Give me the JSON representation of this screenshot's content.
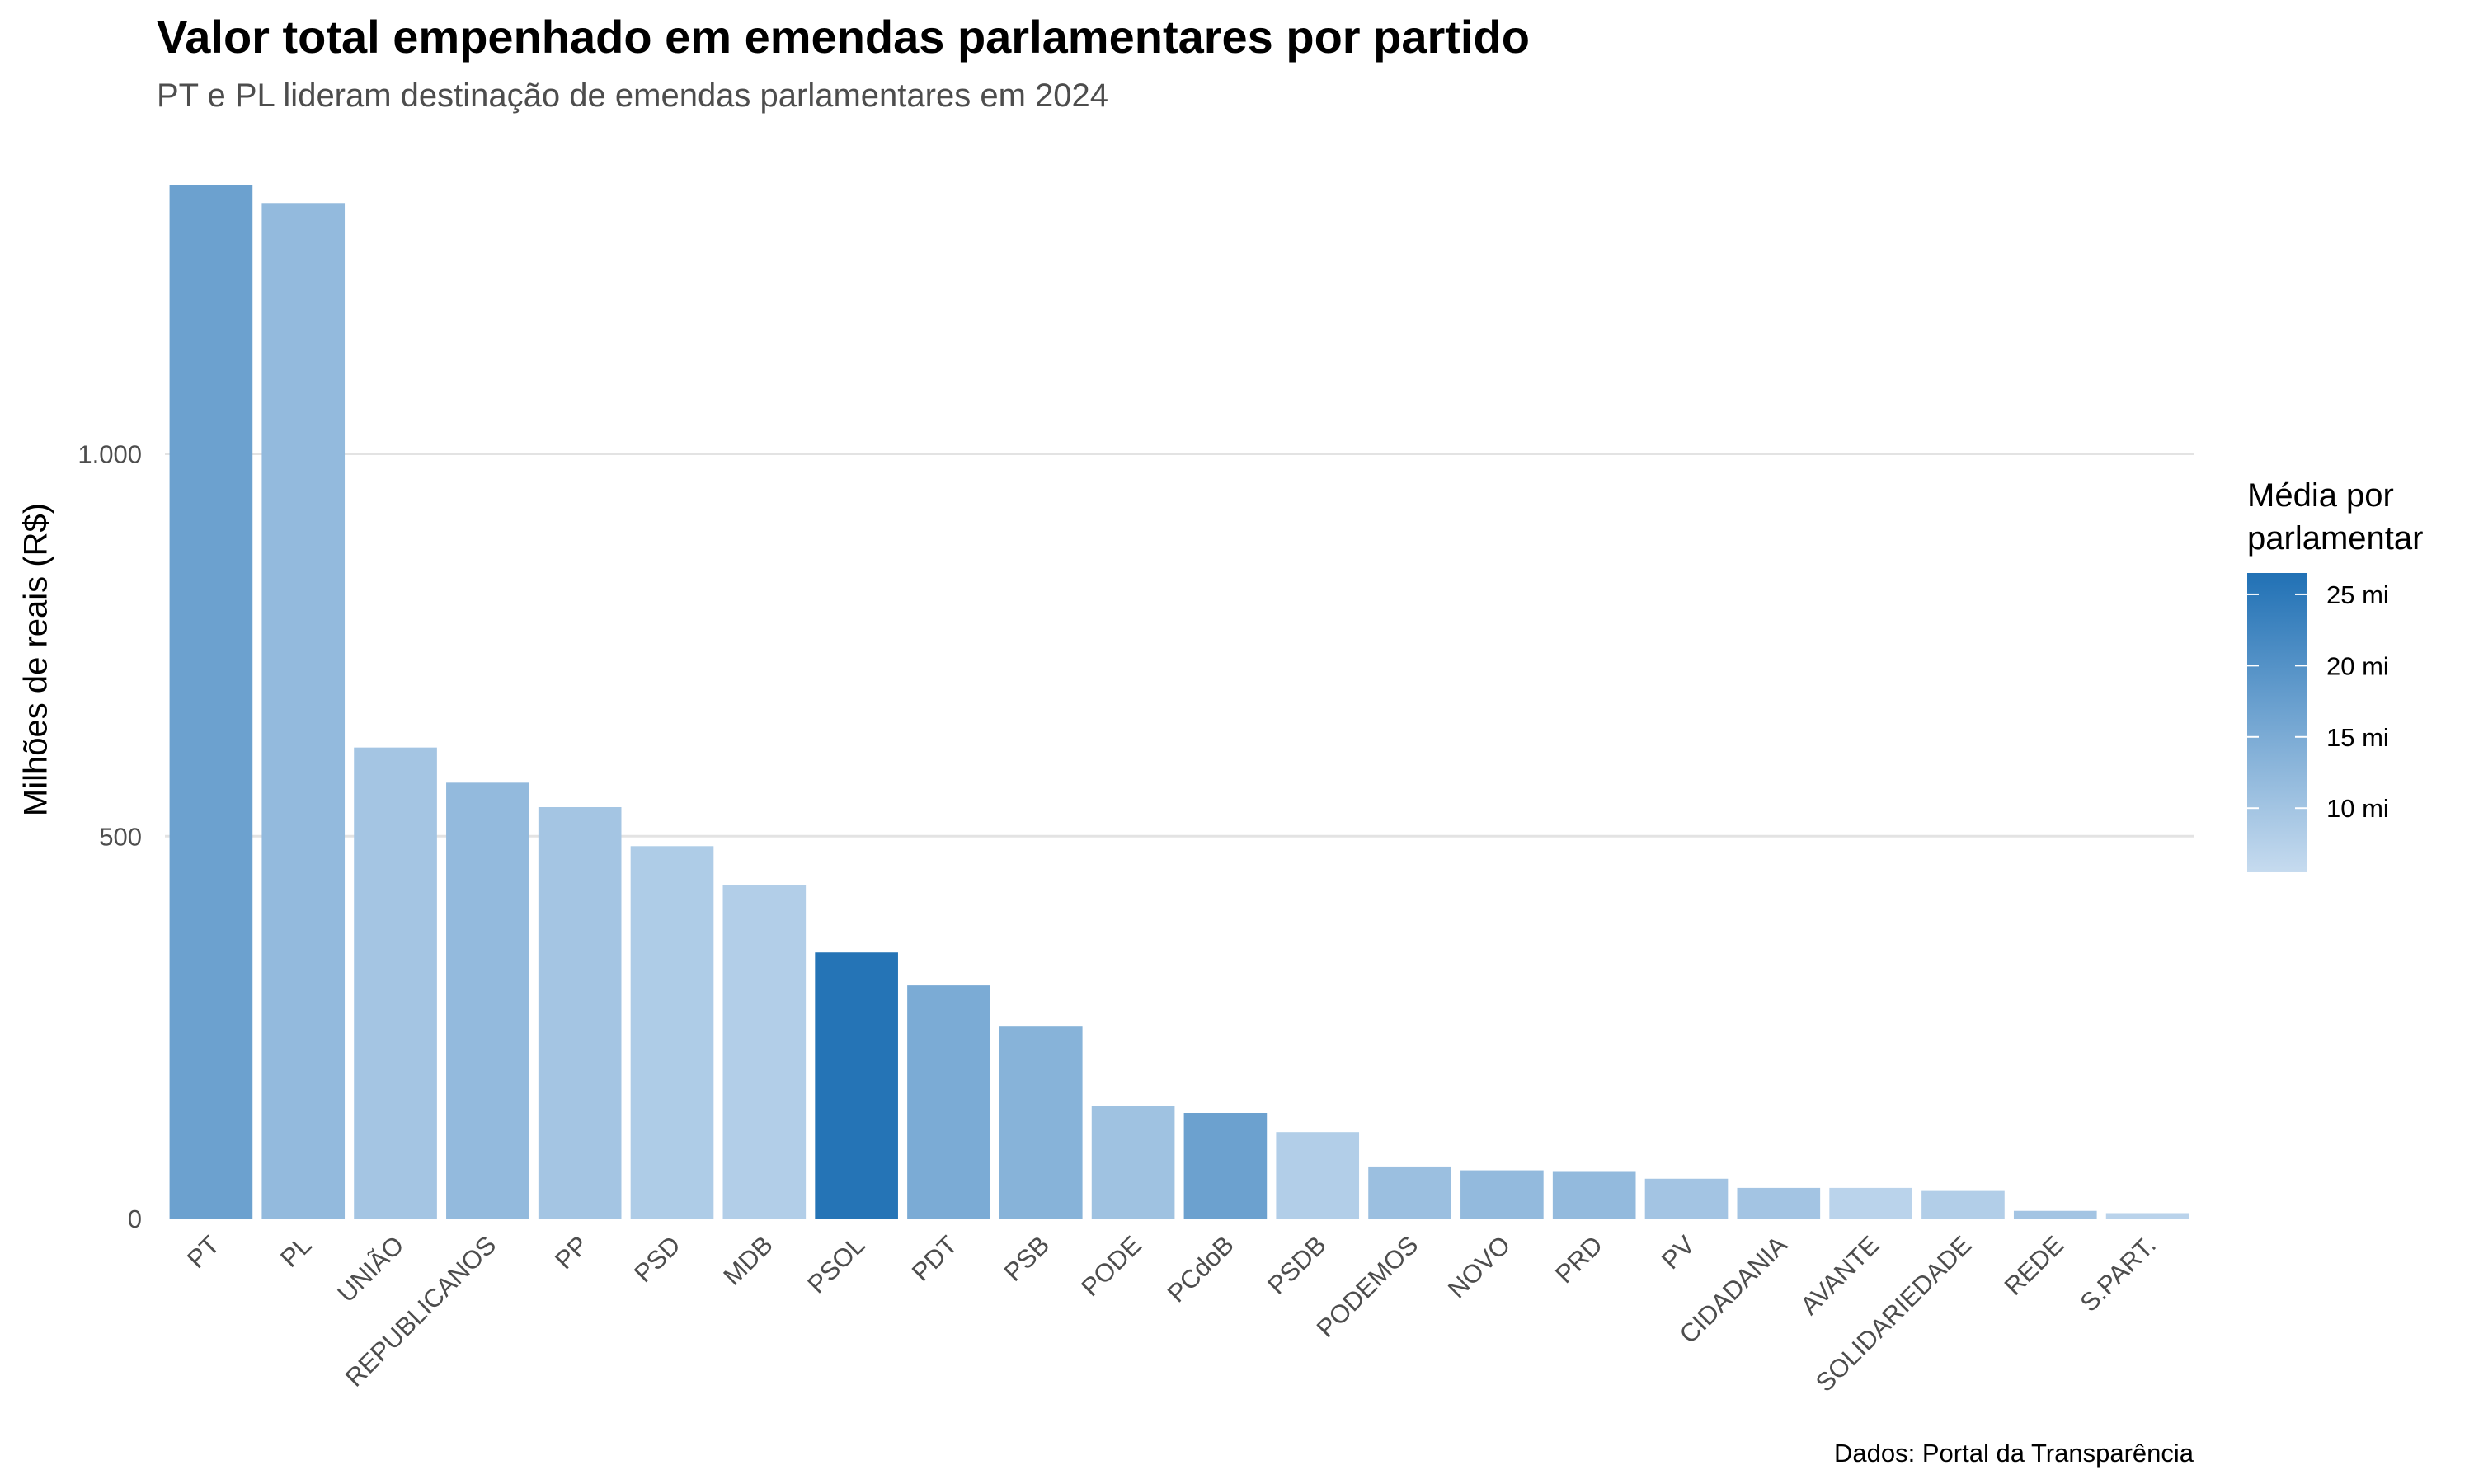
{
  "chart_data": {
    "type": "bar",
    "title": "Valor total empenhado em emendas parlamentares por partido",
    "subtitle": "PT e PL lideram destinação de emendas parlamentares em 2024",
    "caption": "Dados: Portal da Transparência",
    "xlabel": "",
    "ylabel": "Milhões de reais (R$)",
    "ylim": [
      0,
      1400
    ],
    "y_ticks": [
      0,
      500,
      1000
    ],
    "y_tick_labels": [
      "0",
      "500",
      "1.000"
    ],
    "grid": "horizontal",
    "legend": {
      "title": "Média por\nparlamentar",
      "placement": "right",
      "range": [
        5.5,
        26.5
      ],
      "ticks": [
        10,
        15,
        20,
        25
      ],
      "tick_labels": [
        "10 mi",
        "15 mi",
        "20 mi",
        "25 mi"
      ],
      "color_low": "#c6dbef",
      "color_high": "#2171b5"
    },
    "categories": [
      "PT",
      "PL",
      "UNIÃO",
      "REPUBLICANOS",
      "PP",
      "PSD",
      "MDB",
      "PSOL",
      "PDT",
      "PSB",
      "PODE",
      "PCdoB",
      "PSDB",
      "PODEMOS",
      "NOVO",
      "PRD",
      "PV",
      "CIDADANIA",
      "AVANTE",
      "SOLIDARIEDADE",
      "REDE",
      "S.PART."
    ],
    "values": [
      1352,
      1328,
      616,
      570,
      538,
      487,
      436,
      348,
      305,
      251,
      147,
      138,
      113,
      68,
      63,
      62,
      52,
      40,
      40,
      36,
      10,
      7
    ],
    "color_values": [
      17,
      12,
      9.8,
      12,
      9.8,
      8.5,
      8,
      26,
      15,
      13.5,
      10.5,
      17,
      8,
      11,
      12,
      12,
      10,
      10,
      7,
      8,
      10,
      7
    ]
  }
}
